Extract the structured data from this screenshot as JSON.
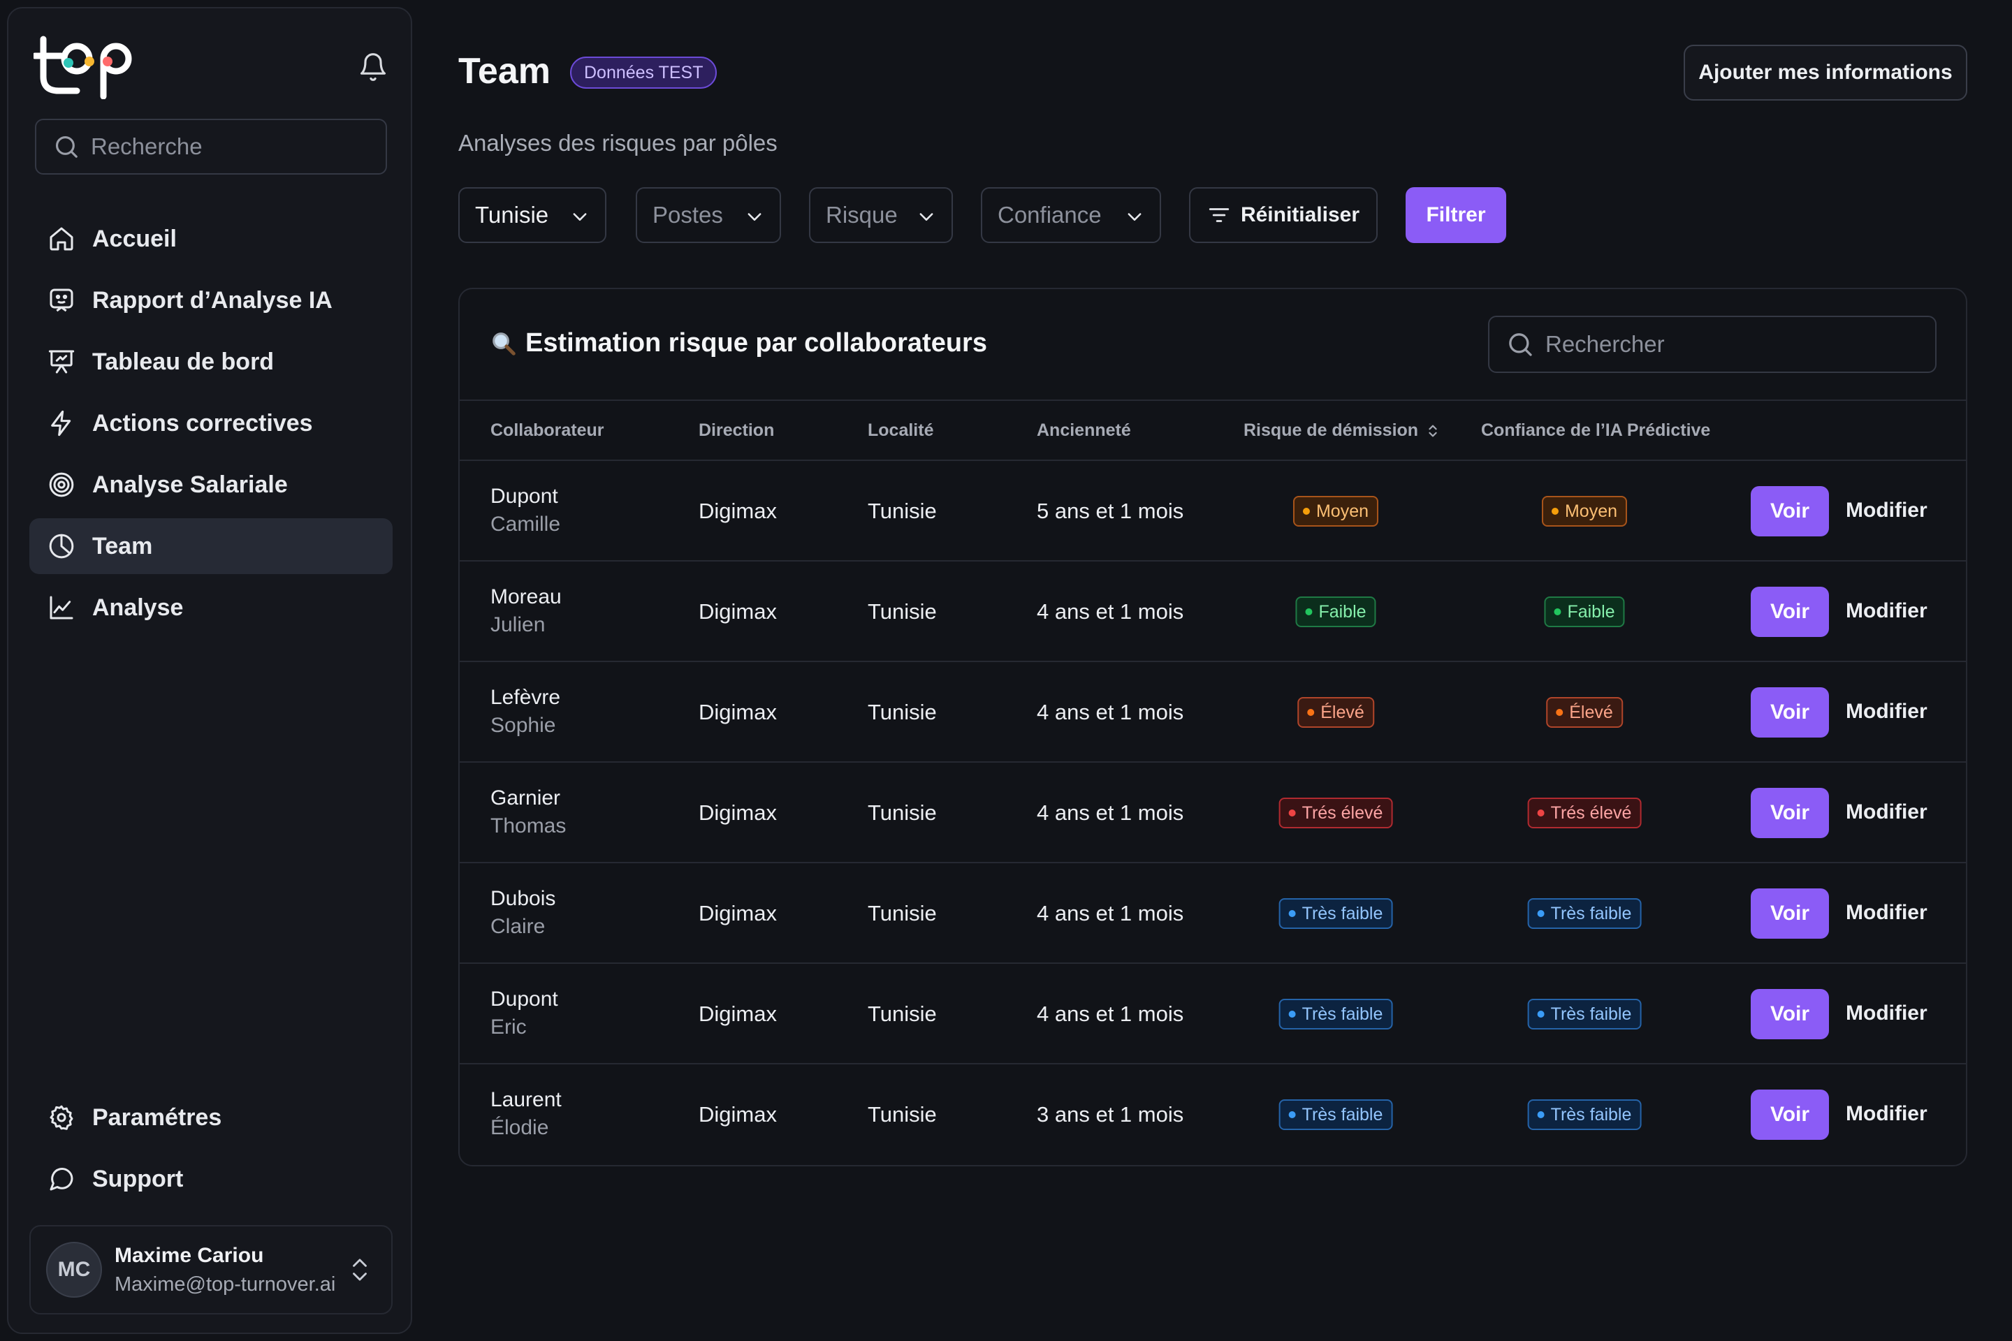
{
  "sidebar": {
    "logo_text": "top",
    "search_placeholder": "Recherche",
    "nav": [
      {
        "label": "Accueil",
        "icon": "home-icon"
      },
      {
        "label": "Rapport d’Analyse IA",
        "icon": "bot-report-icon"
      },
      {
        "label": "Tableau de bord",
        "icon": "presentation-board-icon"
      },
      {
        "label": "Actions correctives",
        "icon": "lightning-icon"
      },
      {
        "label": "Analyse Salariale",
        "icon": "target-icon"
      },
      {
        "label": "Team",
        "icon": "pie-chart-icon",
        "active": true
      },
      {
        "label": "Analyse",
        "icon": "line-chart-icon"
      }
    ],
    "bottom_nav": [
      {
        "label": "Paramétres",
        "icon": "gear-icon"
      },
      {
        "label": "Support",
        "icon": "chat-icon"
      }
    ],
    "user": {
      "initials": "MC",
      "name": "Maxime Cariou",
      "email": "Maxime@top-turnover.ai"
    }
  },
  "header": {
    "title": "Team",
    "badge": "Données TEST",
    "add_info_button": "Ajouter mes informations",
    "subtitle": "Analyses des risques par pôles"
  },
  "filters": {
    "country": "Tunisie",
    "postes": "Postes",
    "risque": "Risque",
    "confiance": "Confiance",
    "reset": "Réinitialiser",
    "apply": "Filtrer"
  },
  "table": {
    "title": "Estimation risque par collaborateurs",
    "search_placeholder": "Rechercher",
    "columns": {
      "collaborateur": "Collaborateur",
      "direction": "Direction",
      "localite": "Localité",
      "anciennete": "Ancienneté",
      "risque": "Risque de démission",
      "confiance": "Confiance de l’IA Prédictive"
    },
    "action_view": "Voir",
    "action_edit": "Modifier",
    "rows": [
      {
        "last": "Dupont",
        "first": "Camille",
        "direction": "Digimax",
        "localite": "Tunisie",
        "anciennete": "5 ans et 1 mois",
        "risque": "Moyen",
        "confiance": "Moyen",
        "tone": "moyen"
      },
      {
        "last": "Moreau",
        "first": "Julien",
        "direction": "Digimax",
        "localite": "Tunisie",
        "anciennete": "4 ans et 1 mois",
        "risque": "Faible",
        "confiance": "Faible",
        "tone": "faible"
      },
      {
        "last": "Lefèvre",
        "first": "Sophie",
        "direction": "Digimax",
        "localite": "Tunisie",
        "anciennete": "4 ans et 1 mois",
        "risque": "Élevé",
        "confiance": "Élevé",
        "tone": "eleve"
      },
      {
        "last": "Garnier",
        "first": "Thomas",
        "direction": "Digimax",
        "localite": "Tunisie",
        "anciennete": "4 ans et 1 mois",
        "risque": "Trés élevé",
        "confiance": "Trés élevé",
        "tone": "tres-eleve"
      },
      {
        "last": "Dubois",
        "first": "Claire",
        "direction": "Digimax",
        "localite": "Tunisie",
        "anciennete": "4 ans et 1 mois",
        "risque": "Très faible",
        "confiance": "Très faible",
        "tone": "tres-faible"
      },
      {
        "last": "Dupont",
        "first": "Eric",
        "direction": "Digimax",
        "localite": "Tunisie",
        "anciennete": "4 ans et 1 mois",
        "risque": "Très faible",
        "confiance": "Très faible",
        "tone": "tres-faible"
      },
      {
        "last": "Laurent",
        "first": "Élodie",
        "direction": "Digimax",
        "localite": "Tunisie",
        "anciennete": "3 ans et 1 mois",
        "risque": "Très faible",
        "confiance": "Très faible",
        "tone": "tres-faible"
      }
    ]
  },
  "colors": {
    "accent": "#8b5cf6",
    "background": "#111318",
    "sidebar": "#15171d"
  }
}
